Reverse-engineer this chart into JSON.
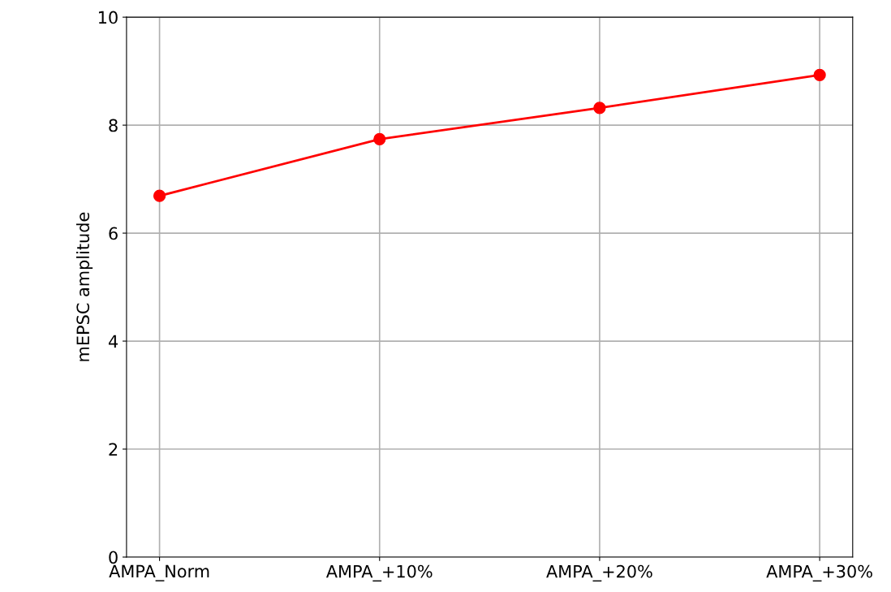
{
  "chart_data": {
    "type": "line",
    "ylabel": "mEPSC amplitude",
    "categories": [
      "AMPA_Norm",
      "AMPA_+10%",
      "AMPA_+20%",
      "AMPA_+30%"
    ],
    "series": [
      {
        "color": "#ff0000",
        "values": [
          6.69,
          7.74,
          8.32,
          8.93
        ]
      }
    ],
    "ylim": [
      0,
      10
    ],
    "yticks": [
      0,
      2,
      4,
      6,
      8,
      10
    ],
    "grid": true,
    "marker": "circle",
    "line_style": "solid"
  }
}
